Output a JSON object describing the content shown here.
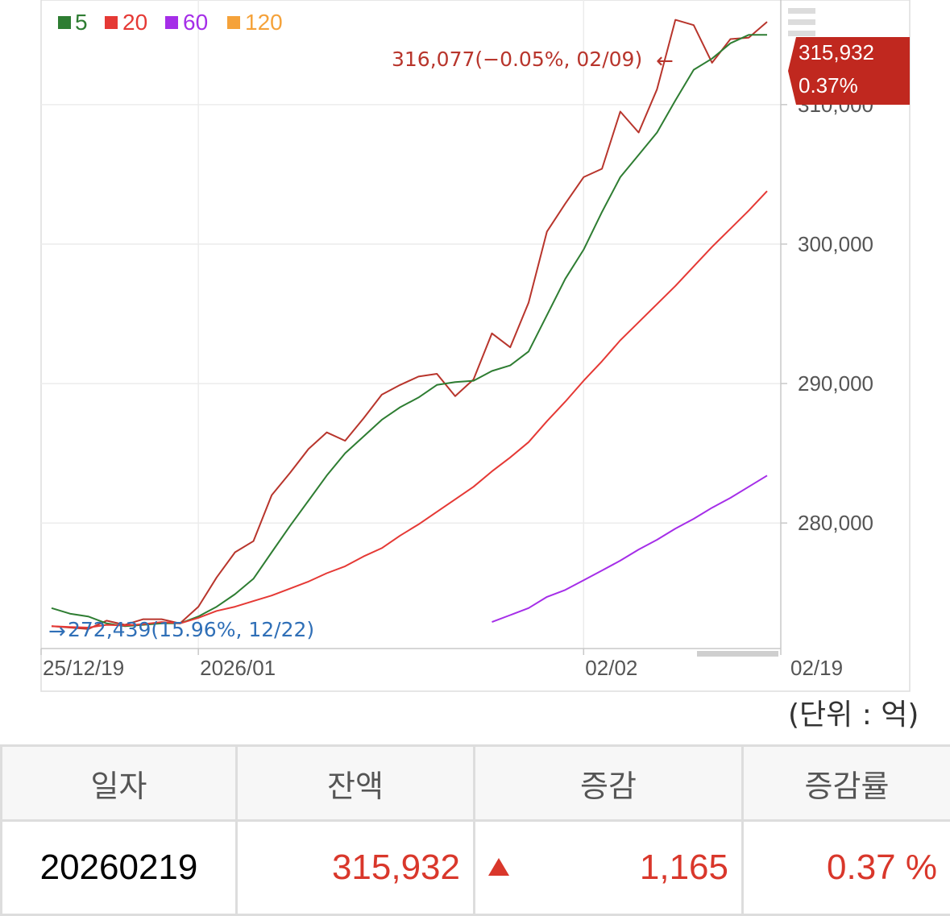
{
  "legend": [
    {
      "label": "5",
      "color": "#2e7d32"
    },
    {
      "label": "20",
      "color": "#e53935"
    },
    {
      "label": "60",
      "color": "#a52ee8"
    },
    {
      "label": "120",
      "color": "#f5a23a"
    }
  ],
  "annotations": {
    "high": "316,077(−0.05%, 02/09)",
    "low": "272,439(15.96%, 12/22)",
    "current_value": "315,932",
    "current_pct": "0.37%"
  },
  "unit_label": "(단위 : 억)",
  "table": {
    "headers": [
      "일자",
      "잔액",
      "증감",
      "증감률"
    ],
    "row": {
      "date": "20260219",
      "balance": "315,932",
      "change": "1,165",
      "rate": "0.37 %"
    }
  },
  "colors": {
    "price": "#b8352c",
    "ma5": "#2e7d32",
    "ma20": "#e53935",
    "ma60": "#a52ee8",
    "up": "#d9372b",
    "low_annot": "#2f6fb7"
  },
  "chart_data": {
    "type": "line",
    "y_ticks": [
      280000,
      290000,
      300000,
      310000
    ],
    "y_tick_labels": [
      "280,000",
      "290,000",
      "300,000",
      "310,000"
    ],
    "ylim": [
      271000,
      317500
    ],
    "x_tick_labels": [
      "25/12/19",
      "2026/01",
      "02/02",
      "02/19"
    ],
    "x_tick_index": [
      0,
      8,
      29,
      39
    ],
    "n_points": 40,
    "grid": true,
    "legend_position": "top-left",
    "series": [
      {
        "key": "price",
        "values": [
          272600,
          272500,
          272400,
          273000,
          272700,
          273100,
          273100,
          272800,
          274000,
          276100,
          277900,
          278700,
          282000,
          283600,
          285300,
          286500,
          285900,
          287500,
          289200,
          289900,
          290500,
          290700,
          289100,
          290300,
          293600,
          292600,
          295800,
          300900,
          302900,
          304800,
          305400,
          309500,
          308000,
          311100,
          316077,
          315700,
          313000,
          314700,
          314800,
          315932
        ]
      },
      {
        "key": "ma5",
        "values": [
          273900,
          273500,
          273300,
          272800,
          272600,
          272700,
          272800,
          272800,
          273300,
          274000,
          274900,
          276000,
          277900,
          279800,
          281600,
          283400,
          285000,
          286200,
          287400,
          288300,
          289000,
          289900,
          290100,
          290200,
          290900,
          291300,
          292300,
          294900,
          297500,
          299600,
          302300,
          304800,
          306400,
          308000,
          310300,
          312500,
          313300,
          314400,
          315000,
          315000
        ]
      },
      {
        "key": "ma20",
        "values": [
          272600,
          272550,
          272500,
          272700,
          272650,
          272750,
          272900,
          272800,
          273200,
          273700,
          274000,
          274400,
          274800,
          275300,
          275800,
          276400,
          276900,
          277600,
          278200,
          279100,
          279900,
          280800,
          281700,
          282600,
          283700,
          284700,
          285800,
          287300,
          288700,
          290200,
          291600,
          293100,
          294400,
          295700,
          297000,
          298400,
          299800,
          301100,
          302400,
          303800
        ]
      },
      {
        "key": "ma60",
        "start": 24,
        "values": [
          272900,
          273400,
          273900,
          274700,
          275200,
          275900,
          276600,
          277300,
          278100,
          278800,
          279600,
          280300,
          281100,
          281800,
          282600,
          283400
        ]
      }
    ]
  }
}
